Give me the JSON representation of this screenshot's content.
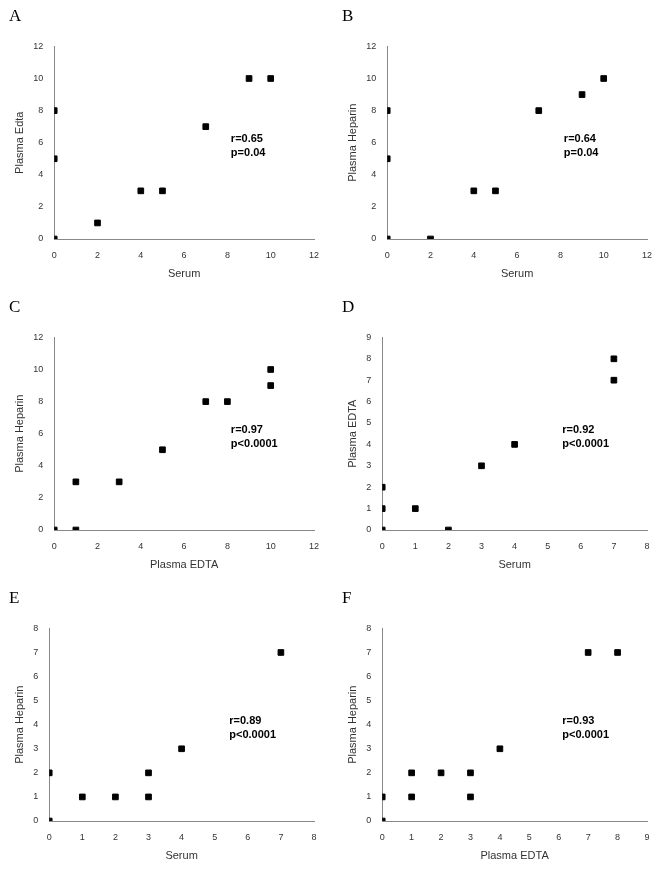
{
  "chart_data": [
    {
      "type": "scatter",
      "title": "A",
      "x_label": "Serum",
      "y_label": "Plasma Edta",
      "x": [
        0,
        0,
        0,
        2,
        4,
        5,
        7,
        9,
        10
      ],
      "values": [
        8,
        5,
        0,
        1,
        3,
        3,
        7,
        10,
        10
      ],
      "color": "#000000",
      "marker": "square",
      "grid": false,
      "xlim": [
        0,
        12
      ],
      "xticks": [
        0,
        2,
        4,
        6,
        8,
        10,
        12
      ],
      "ylim": [
        0,
        12
      ],
      "yticks": [
        0,
        2,
        4,
        6,
        8,
        10,
        12
      ],
      "annotations": [
        "r=0.65",
        "p=0.04"
      ]
    },
    {
      "type": "scatter",
      "title": "B",
      "x_label": "Serum",
      "y_label": "Plasma Heparin",
      "x": [
        0,
        0,
        0,
        2,
        4,
        5,
        7,
        9,
        10
      ],
      "values": [
        8,
        5,
        0,
        0,
        3,
        3,
        8,
        9,
        10
      ],
      "color": "#000000",
      "marker": "square",
      "grid": false,
      "xlim": [
        0,
        12
      ],
      "xticks": [
        0,
        2,
        4,
        6,
        8,
        10,
        12
      ],
      "ylim": [
        0,
        12
      ],
      "yticks": [
        0,
        2,
        4,
        6,
        8,
        10,
        12
      ],
      "annotations": [
        "r=0.64",
        "p=0.04"
      ]
    },
    {
      "type": "scatter",
      "title": "C",
      "x_label": "Plasma EDTA",
      "y_label": "Plasma Heparin",
      "x": [
        0,
        1,
        1,
        3,
        5,
        7,
        8,
        10,
        10
      ],
      "values": [
        0,
        3,
        0,
        3,
        5,
        8,
        8,
        10,
        9
      ],
      "color": "#000000",
      "marker": "square",
      "grid": false,
      "xlim": [
        0,
        12
      ],
      "xticks": [
        0,
        2,
        4,
        6,
        8,
        10,
        12
      ],
      "ylim": [
        0,
        12
      ],
      "yticks": [
        0,
        2,
        4,
        6,
        8,
        10,
        12
      ],
      "annotations": [
        "r=0.97",
        "p<0.0001"
      ]
    },
    {
      "type": "scatter",
      "title": "D",
      "x_label": "Serum",
      "y_label": "Plasma EDTA",
      "x": [
        0,
        0,
        0,
        1,
        2,
        3,
        4,
        7,
        7
      ],
      "values": [
        2,
        1,
        0,
        1,
        0,
        3,
        4,
        8,
        7
      ],
      "color": "#000000",
      "marker": "square",
      "grid": false,
      "xlim": [
        0,
        8
      ],
      "xticks": [
        0,
        1,
        2,
        3,
        4,
        5,
        6,
        7,
        8
      ],
      "ylim": [
        0,
        9
      ],
      "yticks": [
        0,
        1,
        2,
        3,
        4,
        5,
        6,
        7,
        8,
        9
      ],
      "annotations": [
        "r=0.92",
        "p<0.0001"
      ]
    },
    {
      "type": "scatter",
      "title": "E",
      "x_label": "Serum",
      "y_label": "Plasma Heparin",
      "x": [
        0,
        0,
        1,
        2,
        3,
        3,
        4,
        7
      ],
      "values": [
        2,
        0,
        1,
        1,
        2,
        1,
        3,
        7
      ],
      "color": "#000000",
      "marker": "square",
      "grid": false,
      "xlim": [
        0,
        8
      ],
      "xticks": [
        0,
        1,
        2,
        3,
        4,
        5,
        6,
        7,
        8
      ],
      "ylim": [
        0,
        8
      ],
      "yticks": [
        0,
        1,
        2,
        3,
        4,
        5,
        6,
        7,
        8
      ],
      "annotations": [
        "r=0.89",
        "p<0.0001"
      ]
    },
    {
      "type": "scatter",
      "title": "F",
      "x_label": "Plasma EDTA",
      "y_label": "Plasma Heparin",
      "x": [
        0,
        0,
        1,
        1,
        2,
        3,
        3,
        4,
        7,
        8
      ],
      "values": [
        1,
        0,
        2,
        1,
        2,
        2,
        1,
        3,
        7,
        7
      ],
      "color": "#000000",
      "marker": "square",
      "grid": false,
      "xlim": [
        0,
        9
      ],
      "xticks": [
        0,
        1,
        2,
        3,
        4,
        5,
        6,
        7,
        8,
        9
      ],
      "ylim": [
        0,
        8
      ],
      "yticks": [
        0,
        1,
        2,
        3,
        4,
        5,
        6,
        7,
        8
      ],
      "annotations": [
        "r=0.93",
        "p<0.0001"
      ]
    }
  ]
}
